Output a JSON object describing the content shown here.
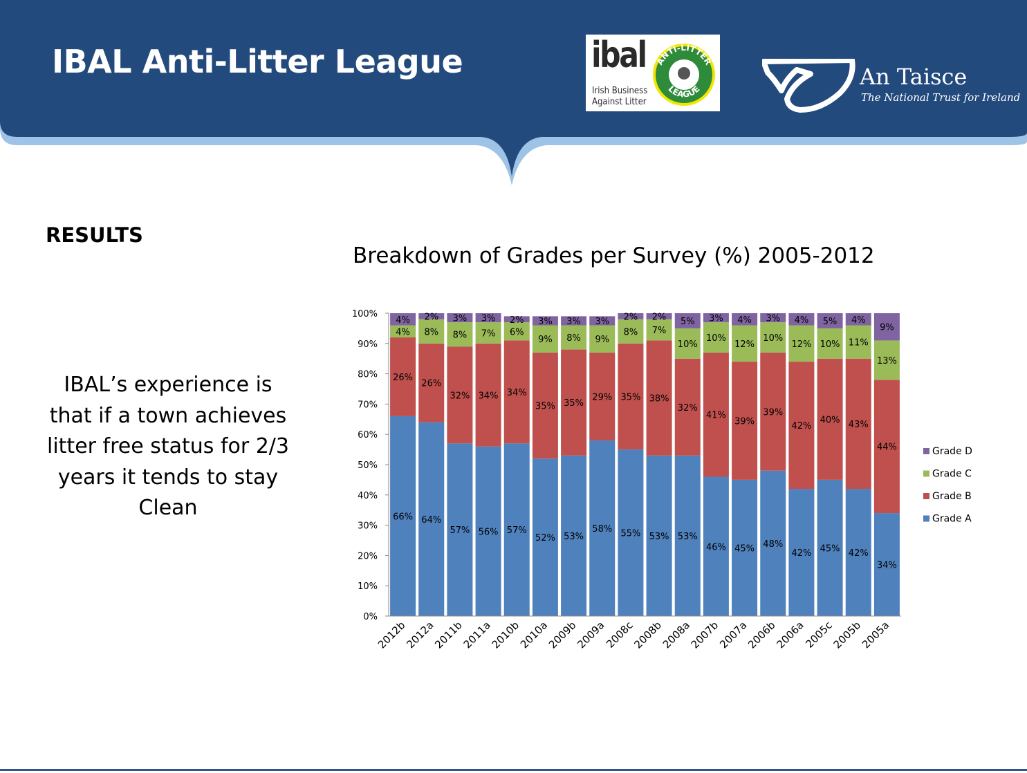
{
  "header": {
    "title": "IBAL Anti-Litter League",
    "ibal_logo": {
      "word": "ibal",
      "subtitle_line1": "Irish Business",
      "subtitle_line2": "Against Litter",
      "badge_top": "ANTI-LITTER",
      "badge_bottom": "LEAGUE"
    },
    "an_taisce_logo": {
      "name": "An Taisce",
      "tagline": "The National Trust for Ireland"
    },
    "colors": {
      "banner": "#234a7c",
      "banner_edge": "#9ec3e6"
    }
  },
  "left_panel": {
    "heading": "RESULTS",
    "text_lines": [
      "IBAL’s experience is",
      "that if a town achieves",
      "litter free status for 2/3",
      "years it tends to stay",
      "Clean"
    ]
  },
  "chart_data": {
    "type": "bar",
    "stacked": true,
    "percent_stacked": true,
    "title": "Breakdown of Grades per Survey (%) 2005-2012",
    "xlabel": "",
    "ylabel": "",
    "ylim": [
      0,
      100
    ],
    "y_ticks": [
      "0%",
      "10%",
      "20%",
      "30%",
      "40%",
      "50%",
      "60%",
      "70%",
      "80%",
      "90%",
      "100%"
    ],
    "categories": [
      "2012b",
      "2012a",
      "2011b",
      "2011a",
      "2010b",
      "2010a",
      "2009b",
      "2009a",
      "2008c",
      "2008b",
      "2008a",
      "2007b",
      "2007a",
      "2006b",
      "2006a",
      "2005c",
      "2005b",
      "2005a"
    ],
    "series": [
      {
        "name": "Grade A",
        "color": "#4f81bd",
        "values": [
          66,
          64,
          57,
          56,
          57,
          52,
          53,
          58,
          55,
          53,
          53,
          46,
          45,
          48,
          42,
          45,
          42,
          34
        ]
      },
      {
        "name": "Grade B",
        "color": "#c0504d",
        "values": [
          26,
          26,
          32,
          34,
          34,
          35,
          35,
          29,
          35,
          38,
          32,
          41,
          39,
          39,
          42,
          40,
          43,
          44
        ]
      },
      {
        "name": "Grade C",
        "color": "#9bbb59",
        "values": [
          4,
          8,
          8,
          7,
          6,
          9,
          8,
          9,
          8,
          7,
          10,
          10,
          12,
          10,
          12,
          10,
          11,
          13
        ]
      },
      {
        "name": "Grade D",
        "color": "#8064a2",
        "values": [
          4,
          2,
          3,
          3,
          2,
          3,
          3,
          3,
          2,
          2,
          5,
          3,
          4,
          3,
          4,
          5,
          4,
          9
        ]
      }
    ],
    "legend_order": [
      "Grade D",
      "Grade C",
      "Grade B",
      "Grade A"
    ],
    "legend_position": "right",
    "grid": false,
    "data_label_suffix": "%"
  }
}
